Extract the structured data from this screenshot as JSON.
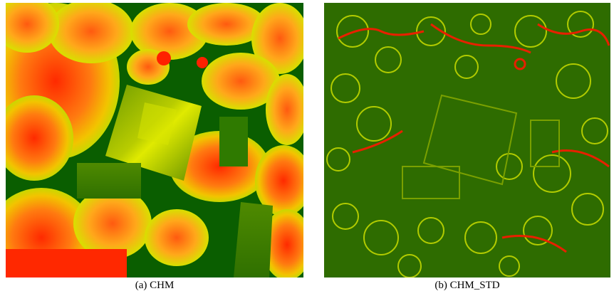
{
  "figure": {
    "panels": [
      {
        "id": "a",
        "caption": "(a) CHM",
        "palette": [
          "#005a00",
          "#4b8c00",
          "#c8d200",
          "#ff3c00"
        ]
      },
      {
        "id": "b",
        "caption": "(b) CHM_STD",
        "palette": [
          "#004800",
          "#3a7a00",
          "#d4e600",
          "#e02000"
        ]
      }
    ]
  }
}
